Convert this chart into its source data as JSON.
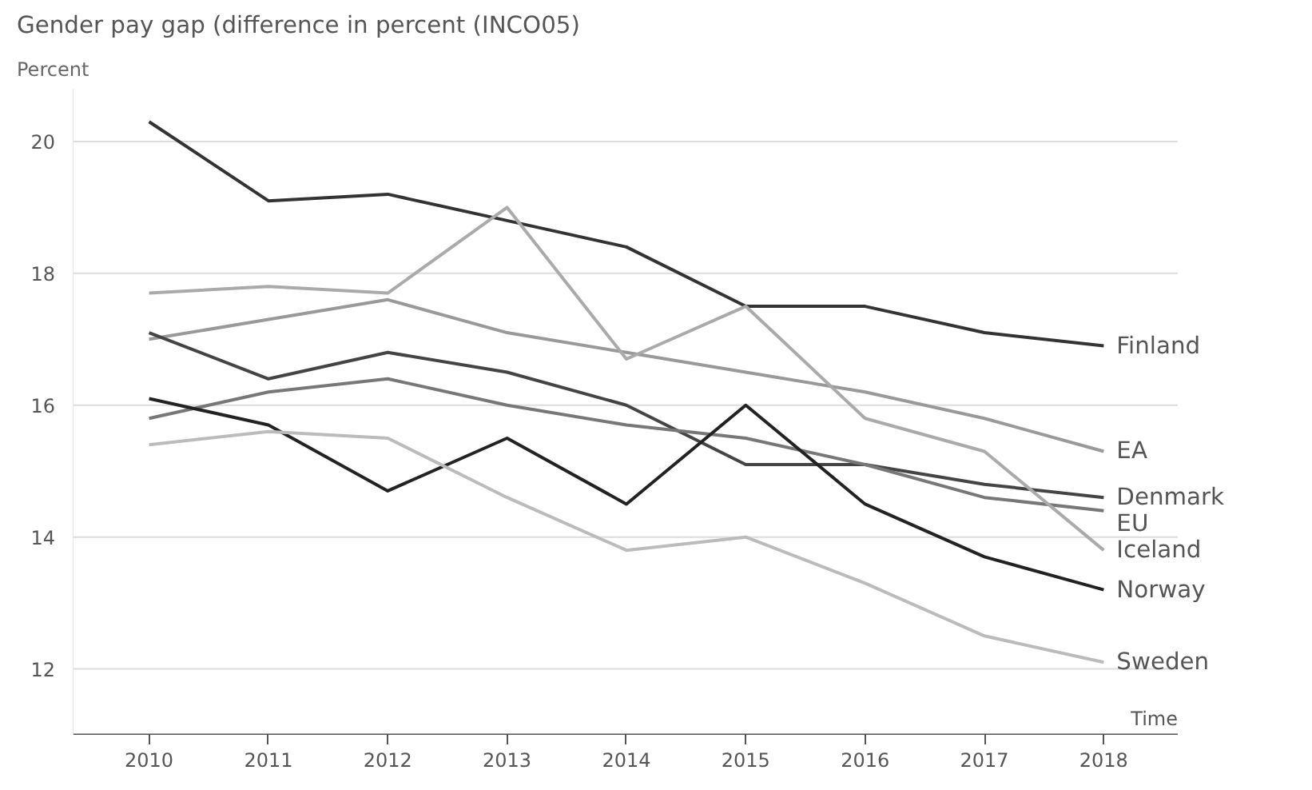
{
  "chart_data": {
    "type": "line",
    "title": "Gender pay gap (difference in percent (INCO05)",
    "ylabel": "Percent",
    "xlabel": "Time",
    "x": [
      2010,
      2011,
      2012,
      2013,
      2014,
      2015,
      2016,
      2017,
      2018
    ],
    "xlim": [
      2009.36,
      2018.62
    ],
    "ylim": [
      11,
      20.8
    ],
    "xticks": [
      2010,
      2011,
      2012,
      2013,
      2014,
      2015,
      2016,
      2017,
      2018
    ],
    "yticks": [
      12,
      14,
      16,
      18,
      20
    ],
    "grid": "y",
    "line_style": "solid",
    "series": [
      {
        "name": "Finland",
        "color": "#333333",
        "values": [
          20.3,
          19.1,
          19.2,
          18.8,
          18.4,
          17.5,
          17.5,
          17.1,
          16.9
        ]
      },
      {
        "name": "EA",
        "color": "#999999",
        "values": [
          17.0,
          17.3,
          17.6,
          17.1,
          16.8,
          16.5,
          16.2,
          15.8,
          15.3
        ]
      },
      {
        "name": "Denmark",
        "color": "#444444",
        "values": [
          17.1,
          16.4,
          16.8,
          16.5,
          16.0,
          15.1,
          15.1,
          14.8,
          14.6
        ]
      },
      {
        "name": "EU",
        "color": "#777777",
        "values": [
          15.8,
          16.2,
          16.4,
          16.0,
          15.7,
          15.5,
          15.1,
          14.6,
          14.4
        ]
      },
      {
        "name": "Iceland",
        "color": "#aaaaaa",
        "values": [
          17.7,
          17.8,
          17.7,
          19.0,
          16.7,
          17.5,
          15.8,
          15.3,
          13.8
        ]
      },
      {
        "name": "Norway",
        "color": "#222222",
        "values": [
          16.1,
          15.7,
          14.7,
          15.5,
          14.5,
          16.0,
          14.5,
          13.7,
          13.2
        ]
      },
      {
        "name": "Sweden",
        "color": "#bbbbbb",
        "values": [
          15.4,
          15.6,
          15.5,
          14.6,
          13.8,
          14.0,
          13.3,
          12.5,
          12.1
        ]
      }
    ]
  }
}
